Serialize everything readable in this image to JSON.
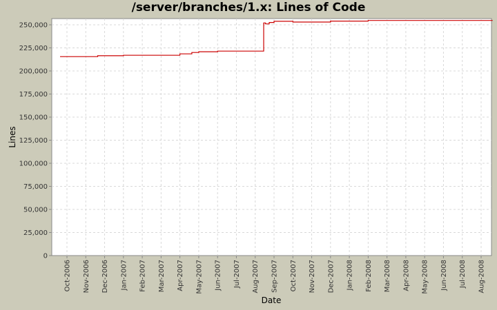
{
  "chart_data": {
    "type": "line",
    "title": "/server/branches/1.x: Lines of Code",
    "xlabel": "Date",
    "ylabel": "Lines",
    "ylim": [
      0,
      260000
    ],
    "y_ticks": [
      0,
      25000,
      50000,
      75000,
      100000,
      125000,
      150000,
      175000,
      200000,
      225000,
      250000
    ],
    "y_tick_labels": [
      "0",
      "25,000",
      "50,000",
      "75,000",
      "100,000",
      "125,000",
      "150,000",
      "175,000",
      "200,000",
      "225,000",
      "250,000"
    ],
    "x_tick_labels": [
      "Oct-2006",
      "Nov-2006",
      "Dec-2006",
      "Jan-2007",
      "Feb-2007",
      "Mar-2007",
      "Apr-2007",
      "May-2007",
      "Jun-2007",
      "Jul-2007",
      "Aug-2007",
      "Sep-2007",
      "Oct-2007",
      "Nov-2007",
      "Dec-2007",
      "Jan-2008",
      "Feb-2008",
      "Mar-2008",
      "Apr-2008",
      "May-2008",
      "Jun-2008",
      "Jul-2008",
      "Aug-2008"
    ],
    "grid": true,
    "legend": "none",
    "series": [
      {
        "name": "Lines of Code",
        "color": "#cc0000",
        "step": true,
        "points": [
          {
            "date": "2006-09-20",
            "value": 215500
          },
          {
            "date": "2006-11-20",
            "value": 216500
          },
          {
            "date": "2007-01-01",
            "value": 217000
          },
          {
            "date": "2007-04-01",
            "value": 218500
          },
          {
            "date": "2007-04-20",
            "value": 220000
          },
          {
            "date": "2007-05-01",
            "value": 220800
          },
          {
            "date": "2007-06-01",
            "value": 221500
          },
          {
            "date": "2007-08-15",
            "value": 252000
          },
          {
            "date": "2007-08-18",
            "value": 251000
          },
          {
            "date": "2007-08-24",
            "value": 252500
          },
          {
            "date": "2007-09-01",
            "value": 253800
          },
          {
            "date": "2007-10-01",
            "value": 253000
          },
          {
            "date": "2007-12-01",
            "value": 254000
          },
          {
            "date": "2008-02-01",
            "value": 254700
          },
          {
            "date": "2008-08-20",
            "value": 254700
          }
        ]
      }
    ]
  },
  "colors": {
    "background": "#cccbb9",
    "plot_background": "#ffffff",
    "gridline": "#d8d8d8",
    "series": "#cc0000"
  }
}
